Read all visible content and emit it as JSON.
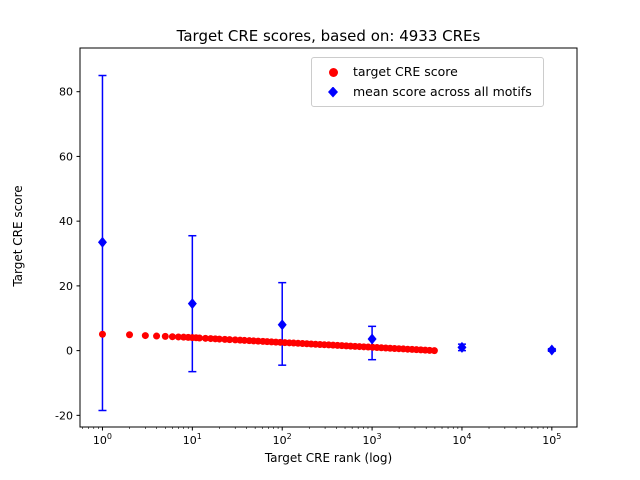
{
  "chart_data": {
    "type": "scatter",
    "title": "Target CRE scores, based on: 4933 CREs",
    "xlabel": "Target CRE rank (log)",
    "ylabel": "Target CRE score",
    "x_scale": "log",
    "xlim_log": [
      -0.25,
      5.28
    ],
    "ylim": [
      -23.6,
      93.5
    ],
    "y_ticks": [
      -20,
      0,
      20,
      40,
      60,
      80
    ],
    "x_tick_exponents": [
      0,
      1,
      2,
      3,
      4,
      5
    ],
    "grid": false,
    "legend_position": "upper right",
    "colors": {
      "target": "#ff0000",
      "mean": "#0000ff"
    },
    "legend": [
      {
        "label": "target CRE score",
        "marker": "circle",
        "color": "#ff0000"
      },
      {
        "label": "mean score across all motifs",
        "marker": "diamond",
        "color": "#0000ff"
      }
    ],
    "target_series": {
      "name": "target CRE score",
      "points": [
        [
          1,
          5.05
        ],
        [
          2,
          4.9
        ],
        [
          3,
          4.65
        ],
        [
          4,
          4.5
        ],
        [
          5,
          4.4
        ],
        [
          6,
          4.3
        ],
        [
          7,
          4.22
        ],
        [
          8,
          4.15
        ],
        [
          9,
          4.08
        ],
        [
          10,
          4.02
        ],
        [
          11,
          3.96
        ],
        [
          12,
          3.9
        ],
        [
          14,
          3.8
        ],
        [
          16,
          3.72
        ],
        [
          18,
          3.64
        ],
        [
          20,
          3.57
        ],
        [
          23,
          3.48
        ],
        [
          26,
          3.4
        ],
        [
          30,
          3.31
        ],
        [
          34,
          3.23
        ],
        [
          38,
          3.15
        ],
        [
          43,
          3.07
        ],
        [
          48,
          3.0
        ],
        [
          54,
          2.93
        ],
        [
          61,
          2.85
        ],
        [
          68,
          2.78
        ],
        [
          76,
          2.7
        ],
        [
          85,
          2.63
        ],
        [
          95,
          2.56
        ],
        [
          107,
          2.48
        ],
        [
          120,
          2.41
        ],
        [
          134,
          2.34
        ],
        [
          150,
          2.26
        ],
        [
          168,
          2.19
        ],
        [
          188,
          2.12
        ],
        [
          210,
          2.05
        ],
        [
          235,
          1.97
        ],
        [
          263,
          1.9
        ],
        [
          294,
          1.83
        ],
        [
          329,
          1.76
        ],
        [
          368,
          1.68
        ],
        [
          412,
          1.61
        ],
        [
          461,
          1.54
        ],
        [
          516,
          1.46
        ],
        [
          577,
          1.39
        ],
        [
          646,
          1.32
        ],
        [
          723,
          1.25
        ],
        [
          809,
          1.17
        ],
        [
          905,
          1.1
        ],
        [
          1013,
          1.03
        ],
        [
          1133,
          0.95
        ],
        [
          1268,
          0.88
        ],
        [
          1419,
          0.81
        ],
        [
          1588,
          0.73
        ],
        [
          1777,
          0.66
        ],
        [
          1988,
          0.59
        ],
        [
          2224,
          0.52
        ],
        [
          2489,
          0.44
        ],
        [
          2785,
          0.37
        ],
        [
          3116,
          0.3
        ],
        [
          3487,
          0.23
        ],
        [
          3902,
          0.15
        ],
        [
          4366,
          0.08
        ],
        [
          4933,
          0.0
        ]
      ]
    },
    "mean_series": {
      "name": "mean score across all motifs",
      "points": [
        {
          "x": 1,
          "y": 33.5,
          "lo": -18.5,
          "hi": 85.0
        },
        {
          "x": 10,
          "y": 14.5,
          "lo": -6.5,
          "hi": 35.5
        },
        {
          "x": 100,
          "y": 8.0,
          "lo": -4.5,
          "hi": 21.0
        },
        {
          "x": 1000,
          "y": 3.6,
          "lo": -2.8,
          "hi": 7.5
        },
        {
          "x": 10000,
          "y": 1.0,
          "lo": 0.0,
          "hi": 2.0
        },
        {
          "x": 100000,
          "y": 0.2,
          "lo": -0.2,
          "hi": 0.6
        }
      ]
    }
  }
}
